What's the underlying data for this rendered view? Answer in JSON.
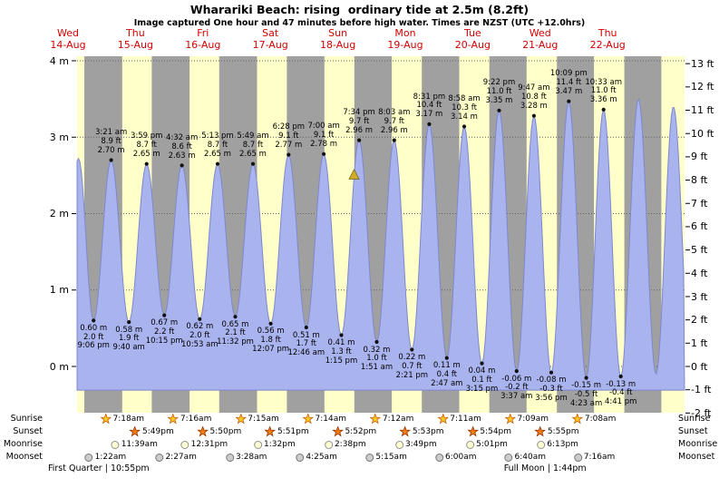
{
  "title": "Wharariki Beach: rising  ordinary tide at 2.5m (8.2ft)",
  "subtitle": "Image captured One hour and 47 minutes before high water. Times are NZST (UTC +12.0hrs)",
  "colors": {
    "day_label": "#d40000",
    "night_band": "#a0a0a0",
    "day_band": "#ffffc9",
    "tide_fill": "#a9b3ed",
    "tide_stroke": "#7d88cf",
    "marker": "#d1ac28",
    "marker_edge": "#6b5a00",
    "sunrise_fill": "#fac81e",
    "sunrise_edge": "#c85a10",
    "sunset_fill": "#ef7d12",
    "sunset_edge": "#993300",
    "moonrise_fill": "#ffffd2",
    "moonrise_edge": "#8f8f8f",
    "moonset_fill": "#cccccc",
    "moonset_edge": "#777777"
  },
  "chart_data": {
    "type": "area",
    "title": "Wharariki Beach tide curve, Wed 14-Aug to Thu 22-Aug",
    "time_window_hours": [
      15.23,
      231.35
    ],
    "x_axis": {
      "days": [
        {
          "name": "Wed",
          "date": "14-Aug"
        },
        {
          "name": "Thu",
          "date": "15-Aug"
        },
        {
          "name": "Fri",
          "date": "16-Aug"
        },
        {
          "name": "Sat",
          "date": "17-Aug"
        },
        {
          "name": "Sun",
          "date": "18-Aug"
        },
        {
          "name": "Mon",
          "date": "19-Aug"
        },
        {
          "name": "Tue",
          "date": "20-Aug"
        },
        {
          "name": "Wed",
          "date": "21-Aug"
        },
        {
          "name": "Thu",
          "date": "22-Aug"
        }
      ]
    },
    "y_left": {
      "unit": "m",
      "ticks": [
        4,
        3,
        2,
        1,
        0
      ],
      "range_m": [
        -0.61,
        4.06
      ]
    },
    "y_right": {
      "unit": "ft",
      "ticks": [
        13,
        12,
        11,
        10,
        9,
        8,
        7,
        6,
        5,
        4,
        3,
        2,
        1,
        0,
        -1,
        -2
      ]
    },
    "daylight_bands": [
      [
        15.23,
        17.8
      ],
      [
        31.3,
        41.82
      ],
      [
        55.27,
        65.83
      ],
      [
        79.25,
        89.85
      ],
      [
        103.23,
        113.87
      ],
      [
        127.2,
        137.88
      ],
      [
        151.18,
        161.9
      ],
      [
        175.15,
        185.92
      ],
      [
        199.13,
        209.93
      ],
      [
        223.1,
        231.35
      ]
    ],
    "extrema": [
      {
        "kind": "low",
        "t": 9.4,
        "m": 0.55
      },
      {
        "kind": "high",
        "t": 15.75,
        "m": 2.72
      },
      {
        "kind": "low",
        "t": 21.1,
        "m": 0.6,
        "label_lines": [
          "0.60 m",
          "2.0 ft",
          "9:06 pm"
        ]
      },
      {
        "kind": "high",
        "t": 27.35,
        "m": 2.7,
        "label_lines": [
          "3:21 am",
          "8.9 ft",
          "2.70 m"
        ]
      },
      {
        "kind": "low",
        "t": 33.67,
        "m": 0.58,
        "label_lines": [
          "0.58 m",
          "1.9 ft",
          "9:40 am"
        ]
      },
      {
        "kind": "high",
        "t": 39.98,
        "m": 2.65,
        "label_lines": [
          "3:59 pm",
          "8.7 ft",
          "2.65 m"
        ]
      },
      {
        "kind": "low",
        "t": 46.25,
        "m": 0.67,
        "label_lines": [
          "0.67 m",
          "2.2 ft",
          "10:15 pm"
        ]
      },
      {
        "kind": "high",
        "t": 52.53,
        "m": 2.63,
        "label_lines": [
          "4:32 am",
          "8.6 ft",
          "2.63 m"
        ]
      },
      {
        "kind": "low",
        "t": 58.88,
        "m": 0.62,
        "label_lines": [
          "0.62 m",
          "2.0 ft",
          "10:53 am"
        ]
      },
      {
        "kind": "high",
        "t": 65.22,
        "m": 2.65,
        "label_lines": [
          "5:13 pm",
          "8.7 ft",
          "2.65 m"
        ]
      },
      {
        "kind": "low",
        "t": 71.53,
        "m": 0.65,
        "label_lines": [
          "0.65 m",
          "2.1 ft",
          "11:32 pm"
        ]
      },
      {
        "kind": "high",
        "t": 77.82,
        "m": 2.65,
        "label_lines": [
          "5:49 am",
          "8.7 ft",
          "2.65 m"
        ]
      },
      {
        "kind": "low",
        "t": 84.12,
        "m": 0.56,
        "label_lines": [
          "0.56 m",
          "1.8 ft",
          "12:07 pm"
        ]
      },
      {
        "kind": "high",
        "t": 90.47,
        "m": 2.77,
        "label_lines": [
          "6:28 pm",
          "9.1 ft",
          "2.77 m"
        ]
      },
      {
        "kind": "low",
        "t": 96.77,
        "m": 0.51,
        "label_lines": [
          "0.51 m",
          "1.7 ft",
          "12:46 am"
        ]
      },
      {
        "kind": "high",
        "t": 103.0,
        "m": 2.78,
        "label_lines": [
          "7:00 am",
          "9.1 ft",
          "2.78 m"
        ]
      },
      {
        "kind": "low",
        "t": 109.25,
        "m": 0.41,
        "label_lines": [
          "0.41 m",
          "1.3 ft",
          "1:15 pm"
        ]
      },
      {
        "kind": "high",
        "t": 115.57,
        "m": 2.96,
        "label_lines": [
          "7:34 pm",
          "9.7 ft",
          "2.96 m"
        ]
      },
      {
        "kind": "low",
        "t": 121.85,
        "m": 0.32,
        "label_lines": [
          "0.32 m",
          "1.0 ft",
          "1:51 am"
        ]
      },
      {
        "kind": "high",
        "t": 128.05,
        "m": 2.96,
        "label_lines": [
          "8:03 am",
          "9.7 ft",
          "2.96 m"
        ]
      },
      {
        "kind": "low",
        "t": 134.35,
        "m": 0.22,
        "label_lines": [
          "0.22 m",
          "0.7 ft",
          "2:21 pm"
        ]
      },
      {
        "kind": "high",
        "t": 140.52,
        "m": 3.17,
        "label_lines": [
          "8:31 pm",
          "10.4 ft",
          "3.17 m"
        ]
      },
      {
        "kind": "low",
        "t": 146.78,
        "m": 0.11,
        "label_lines": [
          "0.11 m",
          "0.4 ft",
          "2:47 am"
        ]
      },
      {
        "kind": "high",
        "t": 152.97,
        "m": 3.14,
        "label_lines": [
          "8:58 am",
          "10.3 ft",
          "3.14 m"
        ]
      },
      {
        "kind": "low",
        "t": 159.25,
        "m": 0.04,
        "label_lines": [
          "0.04 m",
          "0.1 ft",
          "3:15 pm"
        ]
      },
      {
        "kind": "high",
        "t": 165.37,
        "m": 3.35,
        "label_lines": [
          "9:22 pm",
          "11.0 ft",
          "3.35 m"
        ]
      },
      {
        "kind": "low",
        "t": 171.62,
        "m": -0.06,
        "label_lines": [
          "-0.06 m",
          "-0.2 ft",
          "3:37 am"
        ]
      },
      {
        "kind": "high",
        "t": 177.78,
        "m": 3.28,
        "label_lines": [
          "9:47 am",
          "10.8 ft",
          "3.28 m"
        ]
      },
      {
        "kind": "low",
        "t": 183.93,
        "m": -0.08,
        "label_lines": [
          "-0.08 m",
          "-0.3 ft",
          "3:56 pm"
        ]
      },
      {
        "kind": "high",
        "t": 190.15,
        "m": 3.47,
        "label_lines": [
          "10:09 pm",
          "11.4 ft",
          "3.47 m"
        ]
      },
      {
        "kind": "low",
        "t": 196.38,
        "m": -0.15,
        "label_lines": [
          "-0.15 m",
          "-0.5 ft",
          "4:23 am"
        ]
      },
      {
        "kind": "high",
        "t": 202.55,
        "m": 3.36,
        "label_lines": [
          "10:33 am",
          "11.0 ft",
          "3.36 m"
        ]
      },
      {
        "kind": "low",
        "t": 208.68,
        "m": -0.13,
        "label_lines": [
          "-0.13 m",
          "-0.4 ft",
          "4:41 pm"
        ]
      },
      {
        "kind": "high",
        "t": 214.95,
        "m": 3.5
      },
      {
        "kind": "low",
        "t": 221.2,
        "m": -0.1
      },
      {
        "kind": "high",
        "t": 227.4,
        "m": 3.4
      },
      {
        "kind": "low",
        "t": 233.7,
        "m": -0.1
      }
    ],
    "marker": {
      "t": 113.78,
      "m": 2.5,
      "note": "current rising tide at 2.5m, 1h47m before high water"
    }
  },
  "almanac": {
    "row_labels": [
      "Sunrise",
      "Sunset",
      "Moonrise",
      "Moonset"
    ],
    "sunrise": [
      {
        "day": 1,
        "time": "7:18am"
      },
      {
        "day": 2,
        "time": "7:16am"
      },
      {
        "day": 3,
        "time": "7:15am"
      },
      {
        "day": 4,
        "time": "7:14am"
      },
      {
        "day": 5,
        "time": "7:12am"
      },
      {
        "day": 6,
        "time": "7:11am"
      },
      {
        "day": 7,
        "time": "7:09am"
      },
      {
        "day": 8,
        "time": "7:08am"
      }
    ],
    "sunset": [
      {
        "day": 1,
        "time": "5:49pm"
      },
      {
        "day": 2,
        "time": "5:50pm"
      },
      {
        "day": 3,
        "time": "5:51pm"
      },
      {
        "day": 4,
        "time": "5:52pm"
      },
      {
        "day": 5,
        "time": "5:53pm"
      },
      {
        "day": 6,
        "time": "5:54pm"
      },
      {
        "day": 7,
        "time": "5:55pm"
      }
    ],
    "moonrise": [
      {
        "day": 1,
        "time": "11:39am"
      },
      {
        "day": 2,
        "time": "12:31pm"
      },
      {
        "day": 3,
        "time": "1:32pm"
      },
      {
        "day": 4,
        "time": "2:38pm"
      },
      {
        "day": 5,
        "time": "3:49pm"
      },
      {
        "day": 6,
        "time": "5:01pm"
      },
      {
        "day": 7,
        "time": "6:13pm"
      }
    ],
    "moonset": [
      {
        "day": 1,
        "time": "1:22am"
      },
      {
        "day": 2,
        "time": "2:27am"
      },
      {
        "day": 3,
        "time": "3:28am"
      },
      {
        "day": 4,
        "time": "4:25am"
      },
      {
        "day": 5,
        "time": "5:15am"
      },
      {
        "day": 6,
        "time": "6:00am"
      },
      {
        "day": 7,
        "time": "6:40am"
      },
      {
        "day": 8,
        "time": "7:16am"
      }
    ],
    "phases": [
      {
        "name": "First Quarter",
        "time": "10:55pm",
        "day": 0
      },
      {
        "name": "Full Moon",
        "time": "1:44pm",
        "day": 7
      }
    ]
  }
}
